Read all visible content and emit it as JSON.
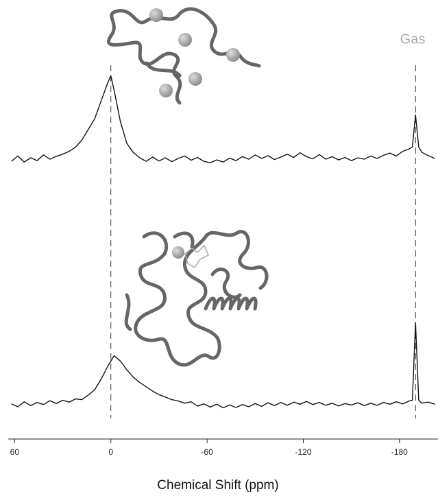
{
  "chart_data": {
    "type": "line",
    "xlabel": "Chemical Shift (ppm)",
    "annotations": [
      "Gas"
    ],
    "reference_lines": [
      0,
      -190
    ],
    "xlim": [
      64,
      -204
    ],
    "xticks": [
      60,
      0,
      -60,
      -120,
      -180
    ],
    "ylim": [
      0,
      100
    ],
    "x": [
      62,
      58,
      54,
      50,
      46,
      42,
      38,
      34,
      30,
      26,
      22,
      18,
      14,
      10,
      6,
      2,
      0,
      -2,
      -6,
      -10,
      -14,
      -18,
      -22,
      -26,
      -30,
      -34,
      -38,
      -42,
      -46,
      -50,
      -54,
      -58,
      -62,
      -66,
      -70,
      -74,
      -78,
      -82,
      -86,
      -90,
      -94,
      -98,
      -102,
      -106,
      -110,
      -114,
      -118,
      -122,
      -126,
      -130,
      -134,
      -138,
      -142,
      -146,
      -150,
      -154,
      -158,
      -162,
      -166,
      -170,
      -174,
      -178,
      -182,
      -186,
      -188,
      -190,
      -192,
      -194,
      -198,
      -202
    ],
    "series": [
      {
        "color": "#111111",
        "values": [
          74,
          75.5,
          73.8,
          75,
          74.2,
          75.8,
          74.6,
          75.4,
          76,
          76.8,
          78,
          80,
          83,
          86,
          91,
          96,
          98,
          94,
          85,
          79,
          76.5,
          75,
          74,
          75.2,
          74.1,
          75,
          73.9,
          74.8,
          75.5,
          74.3,
          75.1,
          74,
          73.6,
          74.4,
          73.8,
          74.9,
          74.2,
          75.3,
          74.6,
          75.8,
          74.8,
          75.6,
          74.5,
          75.2,
          76,
          75.1,
          76.4,
          75.3,
          74.7,
          75.9,
          74.6,
          75.3,
          74.4,
          75.1,
          74.2,
          75,
          74.6,
          75.5,
          74.8,
          75.7,
          76.3,
          75.5,
          76.8,
          77.5,
          78,
          87,
          78,
          76.5,
          75.6,
          74.8
        ]
      },
      {
        "color": "#111111",
        "values": [
          6,
          5.2,
          6.6,
          5.5,
          6.4,
          5.8,
          6.9,
          6.1,
          7,
          6.5,
          7.4,
          7.2,
          8.5,
          10,
          13,
          16.5,
          18,
          19.5,
          18,
          15.5,
          13.5,
          12,
          10.8,
          9.6,
          8.6,
          7.9,
          7.2,
          6.8,
          6.2,
          6.6,
          5.4,
          6,
          5.1,
          5.9,
          4.9,
          5.7,
          5,
          5.8,
          5.2,
          6.1,
          5.3,
          6.3,
          5.5,
          6.4,
          5.6,
          6.5,
          5.9,
          6.7,
          5.8,
          6.4,
          5.6,
          6.2,
          5.4,
          6.1,
          5.7,
          6.3,
          5.5,
          6.2,
          5.6,
          6.4,
          5.9,
          6.6,
          6,
          6.8,
          7,
          28.8,
          7,
          6.2,
          6.5,
          5.9
        ]
      }
    ]
  }
}
